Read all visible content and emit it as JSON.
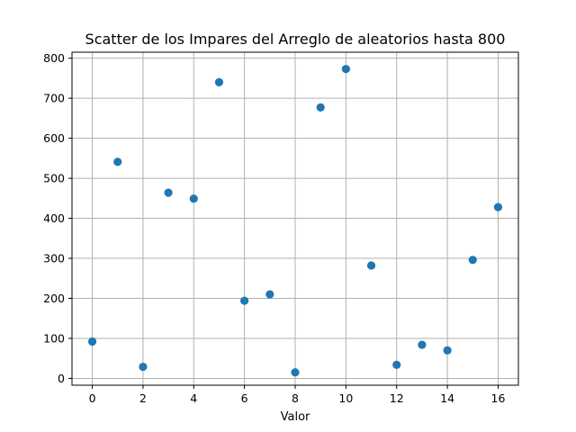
{
  "chart_data": {
    "type": "scatter",
    "title": "Scatter de los Impares del Arreglo de aleatorios hasta 800",
    "xlabel": "Valor",
    "ylabel": "",
    "xlim": [
      -0.8,
      16.8
    ],
    "ylim": [
      -17,
      815
    ],
    "xticks": [
      0,
      2,
      4,
      6,
      8,
      10,
      12,
      14,
      16
    ],
    "yticks": [
      0,
      100,
      200,
      300,
      400,
      500,
      600,
      700,
      800
    ],
    "grid": true,
    "marker_color": "#1f77b4",
    "points": [
      {
        "x": 0,
        "y": 92
      },
      {
        "x": 1,
        "y": 541
      },
      {
        "x": 2,
        "y": 29
      },
      {
        "x": 3,
        "y": 464
      },
      {
        "x": 4,
        "y": 449
      },
      {
        "x": 5,
        "y": 740
      },
      {
        "x": 6,
        "y": 194
      },
      {
        "x": 7,
        "y": 210
      },
      {
        "x": 8,
        "y": 15
      },
      {
        "x": 9,
        "y": 677
      },
      {
        "x": 10,
        "y": 773
      },
      {
        "x": 11,
        "y": 282
      },
      {
        "x": 12,
        "y": 34
      },
      {
        "x": 13,
        "y": 84
      },
      {
        "x": 14,
        "y": 70
      },
      {
        "x": 15,
        "y": 296
      },
      {
        "x": 16,
        "y": 428
      }
    ]
  }
}
